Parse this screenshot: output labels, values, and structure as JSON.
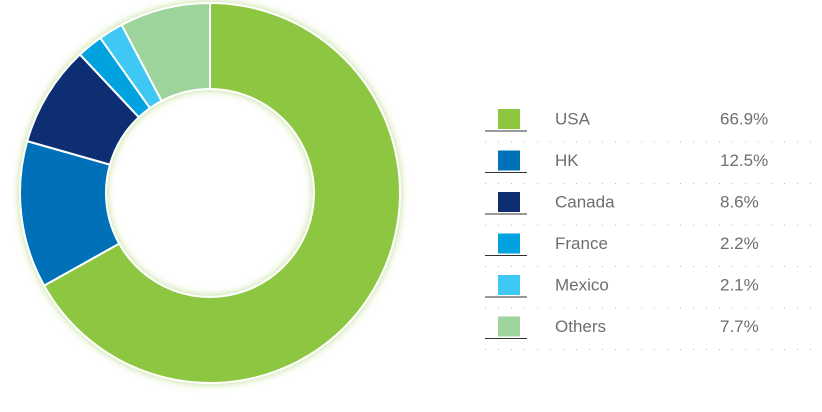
{
  "chart_data": {
    "type": "donut",
    "categories": [
      "USA",
      "HK",
      "Canada",
      "France",
      "Mexico",
      "Others"
    ],
    "values": [
      66.9,
      12.5,
      8.6,
      2.2,
      2.1,
      7.7
    ],
    "value_labels": [
      "66.9%",
      "12.5%",
      "8.6%",
      "2.2%",
      "2.1%",
      "7.7%"
    ],
    "colors": [
      "#8dc63f",
      "#0070b8",
      "#0e2d72",
      "#00a3e0",
      "#3fc8f4",
      "#9dd49b"
    ]
  }
}
